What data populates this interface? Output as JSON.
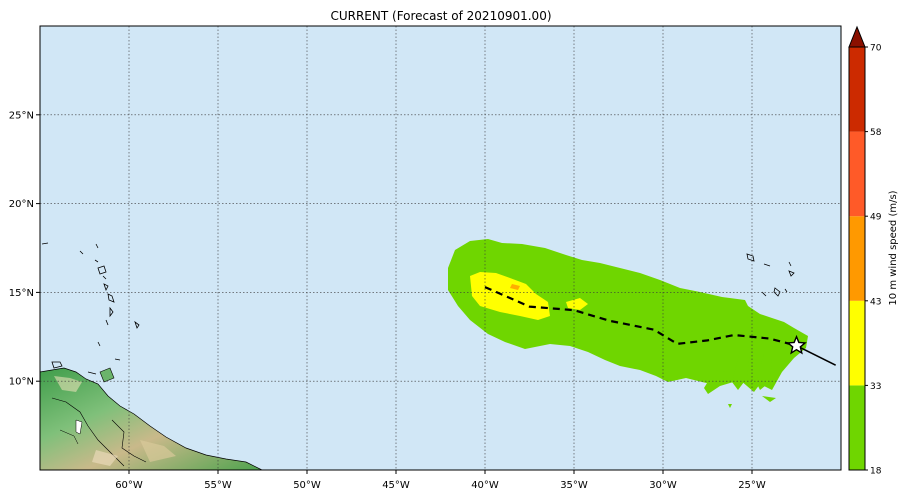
{
  "title": "CURRENT (Forecast of 20210901.00)",
  "map": {
    "ocean_color": "#d1e7f6",
    "grid": true,
    "lon_labels": [
      "60°W",
      "55°W",
      "50°W",
      "45°W",
      "40°W",
      "35°W",
      "30°W",
      "25°W"
    ],
    "lon_values": [
      -60,
      -55,
      -50,
      -45,
      -40,
      -35,
      -30,
      -25
    ],
    "lat_labels": [
      "25°N",
      "20°N",
      "15°N",
      "10°N"
    ],
    "lat_values": [
      25,
      20,
      15,
      10
    ],
    "lon_range": [
      -65,
      -20
    ],
    "lat_range": [
      5,
      30
    ]
  },
  "track": {
    "forecast_style": "dashed",
    "history_style": "solid",
    "storm_marker": "star-icon",
    "storm_position": {
      "lon": -22.5,
      "lat": 12.0
    },
    "points": [
      {
        "lon": -40.0,
        "lat": 15.3
      },
      {
        "lon": -37.5,
        "lat": 14.2
      },
      {
        "lon": -35.0,
        "lat": 14.0
      },
      {
        "lon": -33.0,
        "lat": 13.4
      },
      {
        "lon": -30.5,
        "lat": 12.9
      },
      {
        "lon": -29.2,
        "lat": 12.1
      },
      {
        "lon": -27.5,
        "lat": 12.3
      },
      {
        "lon": -26.0,
        "lat": 12.6
      },
      {
        "lon": -24.0,
        "lat": 12.4
      },
      {
        "lon": -22.5,
        "lat": 12.0
      }
    ],
    "history": [
      {
        "lon": -22.5,
        "lat": 12.0
      },
      {
        "lon": -20.3,
        "lat": 10.9
      }
    ]
  },
  "colorbar": {
    "label": "10 m wind speed (m/s)",
    "ticks": [
      "18",
      "33",
      "43",
      "49",
      "58",
      "70"
    ],
    "colors": [
      "#6fd600",
      "#ffff00",
      "#ff9900",
      "#ff5a28",
      "#cc2a00"
    ],
    "extend_color": "#8a1000"
  }
}
